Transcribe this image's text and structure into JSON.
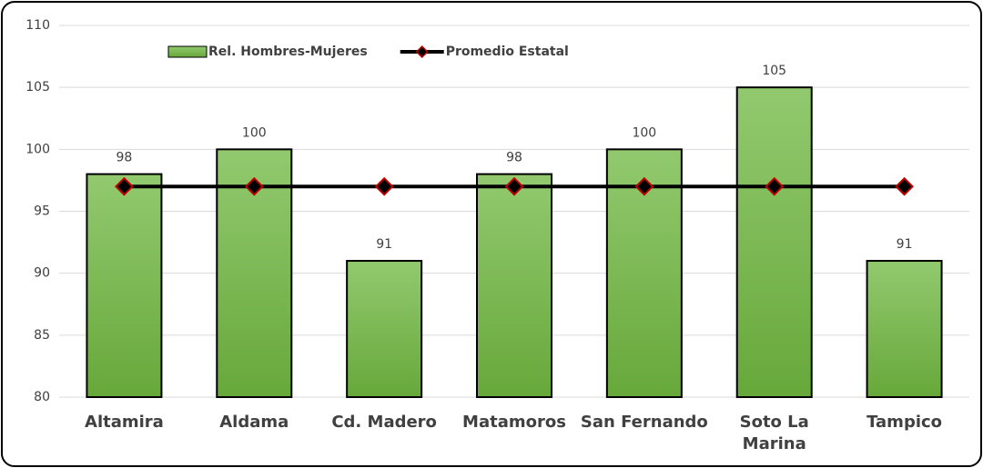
{
  "chart_data": {
    "type": "bar",
    "categories": [
      "Altamira",
      "Aldama",
      "Cd. Madero",
      "Matamoros",
      "San Fernando",
      "Soto La Marina",
      "Tampico"
    ],
    "series": [
      {
        "name": "Rel. Hombres-Mujeres",
        "type": "bar",
        "color": "#77b54a",
        "values": [
          98,
          100,
          91,
          98,
          100,
          105,
          91
        ]
      },
      {
        "name": "Promedio Estatal",
        "type": "line",
        "color": "#000000",
        "marker_edge": "#c00000",
        "values": [
          97,
          97,
          97,
          97,
          97,
          97,
          97
        ]
      }
    ],
    "ylim": [
      80,
      110
    ],
    "yticks": [
      80,
      85,
      90,
      95,
      100,
      105,
      110
    ],
    "grid": true,
    "legend": "top"
  }
}
